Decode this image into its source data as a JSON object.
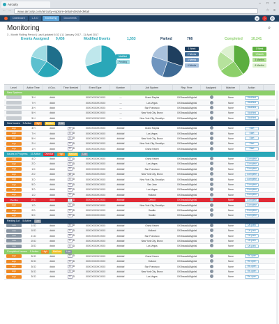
{
  "browser": {
    "tab_title": "Aircuity",
    "url": "www.aircuity.com/aircuity-explore-detail-detail-detail"
  },
  "nav": {
    "tabs": [
      "Dashboard",
      "L & O",
      "Monitoring",
      "Documents"
    ],
    "active": 2
  },
  "page": {
    "title": "Monitoring",
    "subtitle": "3 - Month Rolling Period | Last Updated 6:32 | 11 January 2017 - 11 April 2017"
  },
  "kpis": [
    {
      "label": "Events Assigned",
      "value": "9,456",
      "color": "#2aa7b8"
    },
    {
      "label": "Modified Events",
      "value": "1,553",
      "color": "#2aa7b8"
    },
    {
      "label": "Parked",
      "value": "766",
      "color": "#1f3f5f"
    },
    {
      "label": "Completed",
      "value": "10,241",
      "color": "#8ccf6a"
    }
  ],
  "legends": {
    "modified": [
      "Modified",
      "Pending"
    ],
    "parked": [
      "1 Week",
      "2 Weeks",
      "3 Weeks",
      "4 Weeks"
    ],
    "completed": [
      "1 Week",
      "1 Month",
      "3 Months",
      "6 Months"
    ]
  },
  "columns": [
    "Level",
    "Active Time",
    "# Occ.",
    "Time Needed",
    "Event Type",
    "Number",
    "Job System",
    "Rep. Free",
    "Assigned",
    "Watcher",
    "Action"
  ],
  "sections": [
    {
      "name": "New Systems",
      "color": "#8ccf6a",
      "counts": "",
      "rows": [
        {
          "level": "",
          "time": "3 H",
          "occ": "####",
          "need": "",
          "type": "XXXXXXXXXXXXX",
          "num": "---",
          "sys": "Grand Rapids",
          "rep": "XXXbaaaAAAghksl",
          "watch": "None",
          "act": "Modified"
        },
        {
          "level": "",
          "time": "7 H",
          "occ": "####",
          "need": "",
          "type": "XXXXXXXXXXXXX",
          "num": "---",
          "sys": "Las Vegas",
          "rep": "XXXbaaaAAAghksl",
          "watch": "None",
          "act": "Modified"
        },
        {
          "level": "",
          "time": "3 H",
          "occ": "####",
          "need": "",
          "type": "XXXXXXXXXXXXX",
          "num": "---",
          "sys": "San Francisco",
          "rep": "XXXbaaaAAAghksl",
          "watch": "None",
          "act": "Modified"
        },
        {
          "level": "",
          "time": "5 H",
          "occ": "####",
          "need": "",
          "type": "XXXXXXXXXXXXX",
          "num": "---",
          "sys": "New York City, Bronx",
          "rep": "XXXbaaaAAAghksl",
          "watch": "None",
          "act": "Modified"
        },
        {
          "level": "",
          "time": "5 H",
          "occ": "####",
          "need": "",
          "type": "XXXXXXXXXXXXX",
          "num": "---",
          "sys": "New York City, Brooklyn",
          "rep": "XXXbaaaAAAghksl",
          "watch": "None",
          "act": "Modified"
        }
      ]
    },
    {
      "name": "New Issues",
      "color": "#1f3f5f",
      "counts": "5 Active",
      "chips": [
        "High",
        "Medium",
        "Low"
      ],
      "rows": [
        {
          "level": "High",
          "time": "3 H",
          "occ": "####",
          "need": "5",
          "type": "XXXXXXXXXXXXX",
          "num": "######",
          "sys": "Grand Rapids",
          "rep": "XXXbaaaAAAghksl",
          "watch": "None",
          "act": "Start"
        },
        {
          "level": "High",
          "time": "7 H",
          "occ": "####",
          "need": "5",
          "type": "XXXXXXXXXXXXX",
          "num": "######",
          "sys": "Las Vegas",
          "rep": "XXXbaaaAAAghksl",
          "watch": "None",
          "act": "Start"
        },
        {
          "level": "High",
          "time": "5 H",
          "occ": "####",
          "need": "5",
          "type": "XXXXXXXXXXXXX",
          "num": "######",
          "sys": "New York City, Bronx",
          "rep": "XXXbaaaAAAghksl",
          "watch": "None",
          "act": "Start"
        },
        {
          "level": "High",
          "time": "2 H",
          "occ": "####",
          "need": "5",
          "type": "XXXXXXXXXXXXX",
          "num": "######",
          "sys": "New York City, Brooklyn",
          "rep": "XXXbaaaAAAghksl",
          "watch": "None",
          "act": "Start"
        },
        {
          "level": "High",
          "time": "1 H",
          "occ": "####",
          "need": "5",
          "type": "XXXXXXXXXXXXX",
          "num": "######",
          "sys": "Grand Haven",
          "rep": "XXXbaaaAAAghksl",
          "watch": "None",
          "act": "Start"
        }
      ]
    },
    {
      "name": "Issues in Progress",
      "color": "#2aa7b8",
      "counts": "15 Active",
      "chips": [
        "Overdue",
        "High",
        "Medium",
        "Low"
      ],
      "rows": [
        {
          "level": "High",
          "time": "4 D",
          "occ": "####",
          "need": "5",
          "type": "XXXXXXXXXXXXX",
          "num": "######",
          "sys": "Grand Haven",
          "rep": "XXXbaaaAAAghksl",
          "watch": "None",
          "act": "Complete"
        },
        {
          "level": "High",
          "time": "2 D",
          "occ": "####",
          "need": "5",
          "type": "XXXXXXXXXXXXX",
          "num": "######",
          "sys": "Las Vegas",
          "rep": "XXXbaaaAAAghksl",
          "watch": "None",
          "act": "Complete"
        },
        {
          "level": "High",
          "time": "1 D",
          "occ": "####",
          "need": "5",
          "type": "XXXXXXXXXXXXX",
          "num": "######",
          "sys": "San Francisco",
          "rep": "XXXbaaaAAAghksl",
          "watch": "None",
          "act": "Complete"
        },
        {
          "level": "High",
          "time": "2 D",
          "occ": "####",
          "need": "12",
          "type": "XXXXXXXXXXXXX",
          "num": "######",
          "sys": "New York City, Bronx",
          "rep": "XXXbaaaAAAghksl",
          "watch": "None",
          "act": "Complete"
        },
        {
          "level": "High",
          "time": "3 D",
          "occ": "####",
          "need": "5",
          "type": "XXXXXXXXXXXXX",
          "num": "######",
          "sys": "New York City, Brooklyn",
          "rep": "XXXbaaaAAAghksl",
          "watch": "None",
          "act": "Complete"
        },
        {
          "level": "High",
          "time": "5 D",
          "occ": "####",
          "need": "5",
          "type": "XXXXXXXXXXXXX",
          "num": "######",
          "sys": "San Jose",
          "rep": "XXXbaaaAAAghksl",
          "watch": "None",
          "act": "Complete"
        },
        {
          "level": "High",
          "time": "3 D",
          "occ": "####",
          "need": "5",
          "type": "XXXXXXXXXXXXX",
          "num": "######",
          "sys": "Las Vegas",
          "rep": "XXXbaaaAAAghksl",
          "watch": "None",
          "act": "Complete"
        },
        {
          "level": "High",
          "time": "1 D",
          "occ": "####",
          "need": "5",
          "type": "XXXXXXXXXXXXX",
          "num": "######",
          "sys": "Holland",
          "rep": "XXXbaaaAAAghksl",
          "watch": "None",
          "act": "Complete"
        },
        {
          "level": "Overdue",
          "time": "29 D",
          "occ": "####",
          "need": "5",
          "type": "XXXXXXXXXXXXX",
          "num": "######",
          "sys": "Detroit",
          "rep": "XXXbaaaAAAghksl",
          "watch": "None",
          "act": "Complete",
          "hl": true
        },
        {
          "level": "High",
          "time": "1 D",
          "occ": "####",
          "need": "5",
          "type": "XXXXXXXXXXXXX",
          "num": "######",
          "sys": "New York City, Brooklyn",
          "rep": "XXXbaaaAAAghksl",
          "watch": "None",
          "act": "Complete"
        },
        {
          "level": "High",
          "time": "2 D",
          "occ": "####",
          "need": "5",
          "type": "XXXXXXXXXXXXX",
          "num": "######",
          "sys": "Seattle",
          "rep": "XXXbaaaAAAghksl",
          "watch": "None",
          "act": "Complete"
        },
        {
          "level": "High",
          "time": "5 D",
          "occ": "####",
          "need": "5",
          "type": "XXXXXXXXXXXXX",
          "num": "######",
          "sys": "Seattle",
          "rep": "XXXbaaaAAAghksl",
          "watch": "None",
          "act": "Complete"
        }
      ]
    },
    {
      "name": "Parking Lot",
      "color": "#1f3f5f",
      "counts": "5 Active",
      "chips": [
        "Low"
      ],
      "rows": [
        {
          "level": "Low",
          "time": "14 D",
          "occ": "####",
          "need": "5",
          "type": "XXXXXXXXXXXXX",
          "num": "######",
          "sys": "Grand Haven",
          "rep": "XXXbaaaAAAghksl",
          "watch": "None",
          "act": "Un-park"
        },
        {
          "level": "Low",
          "time": "18 D",
          "occ": "####",
          "need": "5",
          "type": "XXXXXXXXXXXXX",
          "num": "######",
          "sys": "Holland",
          "rep": "XXXbaaaAAAghksl",
          "watch": "None",
          "act": "Un-park"
        },
        {
          "level": "Low",
          "time": "21 D",
          "occ": "####",
          "need": "5",
          "type": "XXXXXXXXXXXXX",
          "num": "######",
          "sys": "San Francisco",
          "rep": "XXXbaaaAAAghksl",
          "watch": "None",
          "act": "Un-park"
        },
        {
          "level": "Low",
          "time": "25 D",
          "occ": "####",
          "need": "5",
          "type": "XXXXXXXXXXXXX",
          "num": "######",
          "sys": "New York City, Bronx",
          "rep": "XXXbaaaAAAghksl",
          "watch": "None",
          "act": "Un-park"
        },
        {
          "level": "Low",
          "time": "28 D",
          "occ": "####",
          "need": "5",
          "type": "XXXXXXXXXXXXX",
          "num": "######",
          "sys": "Las Vegas",
          "rep": "XXXbaaaAAAghksl",
          "watch": "None",
          "act": "Un-park"
        }
      ]
    },
    {
      "name": "Completed Issues",
      "color": "#8ccf6a",
      "counts": "5 Active",
      "chips": [
        "High",
        "Medium",
        "Low"
      ],
      "rows": [
        {
          "level": "High",
          "time": "30 D",
          "occ": "####",
          "need": "5",
          "type": "XXXXXXXXXXXXX",
          "num": "######",
          "sys": "Grand Haven",
          "rep": "XXXbaaaAAAghksl",
          "watch": "None",
          "act": "Re-open"
        },
        {
          "level": "High",
          "time": "30 D",
          "occ": "####",
          "need": "5",
          "type": "XXXXXXXXXXXXX",
          "num": "######",
          "sys": "Holland",
          "rep": "XXXbaaaAAAghksl",
          "watch": "None",
          "act": "Re-open"
        },
        {
          "level": "High",
          "time": "30 D",
          "occ": "####",
          "need": "5",
          "type": "XXXXXXXXXXXXX",
          "num": "######",
          "sys": "San Francisco",
          "rep": "XXXbaaaAAAghksl",
          "watch": "None",
          "act": "Re-open"
        },
        {
          "level": "High",
          "time": "30 D",
          "occ": "####",
          "need": "5",
          "type": "XXXXXXXXXXXXX",
          "num": "######",
          "sys": "New York City, Bronx",
          "rep": "XXXbaaaAAAghksl",
          "watch": "None",
          "act": "Re-open"
        },
        {
          "level": "High",
          "time": "30 D",
          "occ": "####",
          "need": "5",
          "type": "XXXXXXXXXXXXX",
          "num": "######",
          "sys": "Las Vegas",
          "rep": "XXXbaaaAAAghksl",
          "watch": "None",
          "act": "Re-open"
        }
      ]
    }
  ],
  "chart_data": [
    {
      "type": "pie",
      "label": "Events Assigned",
      "values": [
        35,
        25,
        20,
        20
      ],
      "colors": [
        "#1f6f8b",
        "#2aa7b8",
        "#5cc0cf",
        "#9fdbe3"
      ]
    },
    {
      "type": "pie",
      "label": "Modified Events",
      "values": [
        70,
        30
      ],
      "colors": [
        "#2aa7b8",
        "#bfe7ec"
      ]
    },
    {
      "type": "pie",
      "label": "Parked",
      "values": [
        30,
        25,
        25,
        20
      ],
      "colors": [
        "#1f3f5f",
        "#3e6a95",
        "#6f95bf",
        "#a9c1dc"
      ]
    },
    {
      "type": "pie",
      "label": "Completed",
      "values": [
        40,
        25,
        20,
        15
      ],
      "colors": [
        "#5cae3f",
        "#8ccf6a",
        "#b6e29c",
        "#dcf1cf"
      ]
    }
  ]
}
